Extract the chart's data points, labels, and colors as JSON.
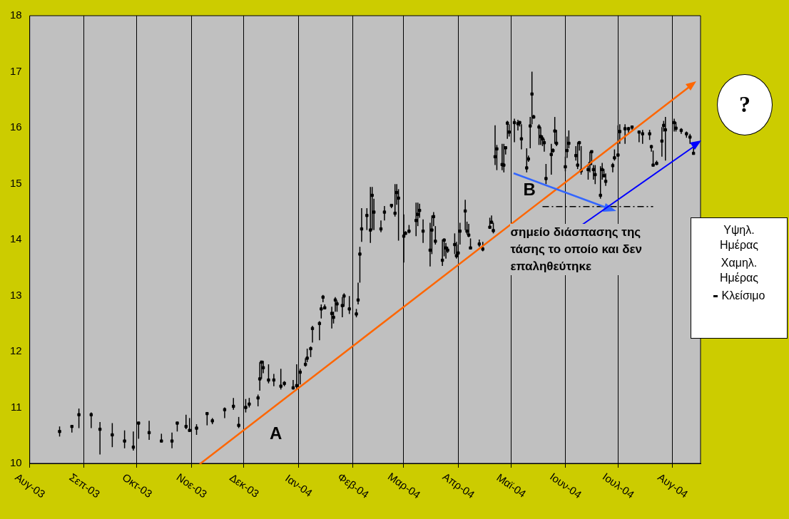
{
  "chart_data": {
    "type": "scatter",
    "legend": "right",
    "grid": "x",
    "xlim": [
      "2003-08-01",
      "2004-08-17"
    ],
    "xticks": [
      {
        "value": "2003-08-01",
        "label": "Αυγ-03"
      },
      {
        "value": "2003-09-01",
        "label": "Σεπ-03"
      },
      {
        "value": "2003-10-01",
        "label": "Οκτ-03"
      },
      {
        "value": "2003-11-01",
        "label": "Νοε-03"
      },
      {
        "value": "2003-12-01",
        "label": "Δεκ-03"
      },
      {
        "value": "2004-01-01",
        "label": "Ιαν-04"
      },
      {
        "value": "2004-02-01",
        "label": "Φεβ-04"
      },
      {
        "value": "2004-03-01",
        "label": "Μαρ-04"
      },
      {
        "value": "2004-04-01",
        "label": "Απρ-04"
      },
      {
        "value": "2004-05-01",
        "label": "Μαϊ-04"
      },
      {
        "value": "2004-06-01",
        "label": "Ιουν-04"
      },
      {
        "value": "2004-07-01",
        "label": "Ιουλ-04"
      },
      {
        "value": "2004-08-01",
        "label": "Αυγ-04"
      }
    ],
    "ylim": [
      10,
      18
    ],
    "yticks": [
      10,
      11,
      12,
      13,
      14,
      15,
      16,
      17,
      18
    ],
    "x": [
      "2003-08-18",
      "2003-08-25",
      "2003-08-29",
      "2003-09-05",
      "2003-09-10",
      "2003-09-17",
      "2003-09-24",
      "2003-09-29",
      "2003-10-02",
      "2003-10-08",
      "2003-10-15",
      "2003-10-21",
      "2003-10-24",
      "2003-10-29",
      "2003-10-31",
      "2003-11-04",
      "2003-11-10",
      "2003-11-13",
      "2003-11-20",
      "2003-11-25",
      "2003-11-28",
      "2003-12-02",
      "2003-12-04",
      "2003-12-09",
      "2003-12-10",
      "2003-12-11",
      "2003-12-12",
      "2003-12-15",
      "2003-12-18",
      "2003-12-22",
      "2003-12-24",
      "2003-12-29",
      "2003-12-31",
      "2004-01-02",
      "2004-01-05",
      "2004-01-06",
      "2004-01-08",
      "2004-01-09",
      "2004-01-13",
      "2004-01-14",
      "2004-01-15",
      "2004-01-16",
      "2004-01-20",
      "2004-01-21",
      "2004-01-22",
      "2004-01-23",
      "2004-01-26",
      "2004-01-27",
      "2004-01-30",
      "2004-02-03",
      "2004-02-04",
      "2004-02-05",
      "2004-02-06",
      "2004-02-09",
      "2004-02-11",
      "2004-02-12",
      "2004-02-13",
      "2004-02-17",
      "2004-02-19",
      "2004-02-23",
      "2004-02-25",
      "2004-02-26",
      "2004-02-27",
      "2004-03-01",
      "2004-03-02",
      "2004-03-04",
      "2004-03-08",
      "2004-03-09",
      "2004-03-10",
      "2004-03-12",
      "2004-03-16",
      "2004-03-17",
      "2004-03-18",
      "2004-03-19",
      "2004-03-23",
      "2004-03-24",
      "2004-03-25",
      "2004-03-26",
      "2004-03-30",
      "2004-03-31",
      "2004-04-01",
      "2004-04-02",
      "2004-04-05",
      "2004-04-06",
      "2004-04-07",
      "2004-04-08",
      "2004-04-13",
      "2004-04-15",
      "2004-04-19",
      "2004-04-20",
      "2004-04-21",
      "2004-04-22",
      "2004-04-23",
      "2004-04-26",
      "2004-04-27",
      "2004-04-28",
      "2004-04-29",
      "2004-04-30",
      "2004-05-03",
      "2004-05-05",
      "2004-05-06",
      "2004-05-07",
      "2004-05-10",
      "2004-05-11",
      "2004-05-12",
      "2004-05-13",
      "2004-05-14",
      "2004-05-17",
      "2004-05-18",
      "2004-05-19",
      "2004-05-20",
      "2004-05-21",
      "2004-05-24",
      "2004-05-25",
      "2004-05-26",
      "2004-05-27",
      "2004-06-01",
      "2004-06-02",
      "2004-06-03",
      "2004-06-07",
      "2004-06-08",
      "2004-06-09",
      "2004-06-10",
      "2004-06-14",
      "2004-06-15",
      "2004-06-16",
      "2004-06-17",
      "2004-06-18",
      "2004-06-21",
      "2004-06-22",
      "2004-06-23",
      "2004-06-24",
      "2004-06-28",
      "2004-06-29",
      "2004-07-01",
      "2004-07-02",
      "2004-07-05",
      "2004-07-07",
      "2004-07-09",
      "2004-07-13",
      "2004-07-15",
      "2004-07-19",
      "2004-07-20",
      "2004-07-21",
      "2004-07-23",
      "2004-07-26",
      "2004-07-27",
      "2004-07-28",
      "2004-08-02",
      "2004-08-03",
      "2004-08-06",
      "2004-08-09",
      "2004-08-11",
      "2004-08-13"
    ],
    "series": [
      {
        "name": "Κλείσιμο",
        "color": "#000000",
        "marker": "square",
        "values": [
          10.57,
          10.66,
          10.87,
          10.87,
          10.61,
          10.51,
          10.4,
          10.29,
          10.72,
          10.55,
          10.4,
          10.4,
          10.72,
          10.66,
          10.59,
          10.63,
          10.89,
          10.76,
          10.96,
          11.02,
          10.68,
          11.0,
          11.06,
          11.17,
          11.51,
          11.81,
          11.71,
          11.49,
          11.49,
          11.38,
          11.43,
          11.35,
          11.39,
          11.63,
          11.77,
          11.88,
          12.05,
          12.41,
          12.5,
          12.76,
          12.97,
          12.78,
          12.68,
          12.61,
          12.92,
          12.85,
          12.82,
          12.99,
          12.76,
          12.67,
          12.92,
          13.74,
          14.19,
          14.43,
          14.17,
          14.79,
          14.49,
          14.19,
          14.49,
          14.61,
          14.47,
          14.84,
          14.74,
          14.06,
          14.11,
          14.15,
          14.34,
          14.45,
          14.52,
          14.15,
          13.81,
          14.17,
          14.41,
          13.97,
          13.63,
          13.99,
          13.85,
          13.81,
          13.91,
          13.71,
          13.76,
          14.15,
          14.51,
          14.15,
          14.08,
          13.85,
          13.92,
          13.83,
          14.22,
          14.31,
          14.16,
          15.48,
          15.62,
          15.34,
          15.33,
          15.64,
          16.08,
          15.92,
          16.09,
          16.07,
          16.09,
          15.8,
          15.28,
          15.44,
          16.03,
          16.6,
          16.19,
          16.01,
          15.84,
          15.8,
          15.73,
          15.09,
          15.52,
          15.59,
          15.94,
          15.72,
          15.3,
          15.59,
          15.72,
          15.5,
          15.33,
          15.73,
          15.23,
          15.25,
          15.36,
          15.57,
          15.25,
          15.16,
          14.79,
          15.25,
          15.14,
          15.04,
          15.32,
          15.46,
          15.51,
          15.93,
          15.98,
          15.98,
          16.01,
          15.92,
          15.89,
          15.89,
          15.66,
          15.33,
          15.36,
          15.76,
          16.04,
          15.96,
          16.09,
          15.99,
          15.95,
          15.89,
          15.83,
          15.54
        ],
        "errors": [
          [
            10.48,
            10.66
          ],
          [
            10.55,
            10.68
          ],
          [
            10.63,
            10.98
          ],
          [
            10.63,
            10.91
          ],
          [
            10.16,
            10.74
          ],
          [
            10.29,
            10.72
          ],
          [
            10.27,
            10.59
          ],
          [
            10.23,
            10.57
          ],
          [
            10.44,
            10.74
          ],
          [
            10.42,
            10.76
          ],
          [
            10.38,
            10.53
          ],
          [
            10.27,
            10.55
          ],
          [
            10.57,
            10.74
          ],
          [
            10.61,
            10.87
          ],
          [
            10.57,
            10.81
          ],
          [
            10.51,
            10.7
          ],
          [
            10.68,
            10.91
          ],
          [
            10.7,
            10.81
          ],
          [
            10.81,
            11.0
          ],
          [
            10.96,
            11.17
          ],
          [
            10.63,
            10.83
          ],
          [
            10.91,
            11.15
          ],
          [
            11.0,
            11.17
          ],
          [
            11.02,
            11.23
          ],
          [
            11.3,
            11.81
          ],
          [
            11.51,
            11.83
          ],
          [
            11.61,
            11.83
          ],
          [
            11.43,
            11.77
          ],
          [
            11.38,
            11.6
          ],
          [
            11.32,
            11.69
          ],
          [
            11.38,
            11.47
          ],
          [
            11.32,
            11.49
          ],
          [
            11.32,
            11.77
          ],
          [
            11.41,
            11.69
          ],
          [
            11.73,
            11.88
          ],
          [
            11.81,
            12.05
          ],
          [
            11.9,
            12.09
          ],
          [
            12.16,
            12.46
          ],
          [
            12.2,
            12.54
          ],
          [
            12.59,
            12.84
          ],
          [
            12.88,
            13.01
          ],
          [
            12.76,
            12.84
          ],
          [
            12.41,
            12.8
          ],
          [
            12.5,
            12.71
          ],
          [
            12.71,
            12.97
          ],
          [
            12.71,
            12.91
          ],
          [
            12.61,
            12.97
          ],
          [
            12.8,
            13.04
          ],
          [
            12.67,
            12.99
          ],
          [
            12.61,
            12.76
          ],
          [
            12.84,
            13.23
          ],
          [
            13.23,
            13.87
          ],
          [
            13.96,
            14.56
          ],
          [
            14.17,
            14.56
          ],
          [
            13.94,
            14.94
          ],
          [
            14.17,
            14.94
          ],
          [
            14.17,
            14.73
          ],
          [
            14.13,
            14.34
          ],
          [
            14.34,
            14.6
          ],
          [
            14.56,
            14.62
          ],
          [
            14.41,
            14.99
          ],
          [
            14.62,
            14.99
          ],
          [
            13.98,
            14.9
          ],
          [
            13.59,
            14.45
          ],
          [
            14.09,
            14.15
          ],
          [
            14.11,
            14.26
          ],
          [
            14.06,
            14.66
          ],
          [
            14.24,
            14.66
          ],
          [
            14.39,
            14.64
          ],
          [
            13.94,
            14.36
          ],
          [
            13.52,
            14.3
          ],
          [
            13.74,
            14.43
          ],
          [
            14.24,
            14.49
          ],
          [
            13.91,
            14.24
          ],
          [
            13.53,
            14.0
          ],
          [
            13.7,
            14.02
          ],
          [
            13.66,
            13.94
          ],
          [
            13.76,
            13.87
          ],
          [
            13.74,
            14.11
          ],
          [
            13.66,
            13.96
          ],
          [
            13.7,
            13.91
          ],
          [
            13.91,
            14.3
          ],
          [
            14.17,
            14.71
          ],
          [
            14.09,
            14.32
          ],
          [
            14.04,
            14.28
          ],
          [
            13.83,
            14.02
          ],
          [
            13.87,
            14.0
          ],
          [
            13.79,
            13.96
          ],
          [
            14.19,
            14.39
          ],
          [
            14.28,
            14.43
          ],
          [
            14.11,
            14.3
          ],
          [
            15.33,
            16.04
          ],
          [
            15.24,
            15.69
          ],
          [
            15.24,
            15.71
          ],
          [
            15.2,
            15.71
          ],
          [
            15.52,
            15.67
          ],
          [
            15.8,
            16.12
          ],
          [
            15.84,
            16.06
          ],
          [
            15.74,
            16.16
          ],
          [
            15.95,
            16.14
          ],
          [
            16.02,
            16.12
          ],
          [
            15.61,
            16.06
          ],
          [
            15.2,
            15.63
          ],
          [
            15.39,
            15.5
          ],
          [
            15.63,
            16.19
          ],
          [
            16.06,
            17.0
          ],
          [
            16.16,
            16.23
          ],
          [
            15.69,
            16.06
          ],
          [
            15.69,
            16.01
          ],
          [
            15.67,
            15.86
          ],
          [
            15.57,
            15.8
          ],
          [
            14.99,
            15.35
          ],
          [
            15.16,
            15.71
          ],
          [
            15.55,
            15.63
          ],
          [
            15.71,
            16.19
          ],
          [
            15.67,
            15.96
          ],
          [
            15.22,
            15.48
          ],
          [
            15.46,
            15.84
          ],
          [
            15.63,
            15.95
          ],
          [
            15.41,
            15.67
          ],
          [
            15.26,
            15.74
          ],
          [
            15.59,
            15.76
          ],
          [
            15.16,
            15.67
          ],
          [
            15.07,
            15.33
          ],
          [
            15.2,
            15.57
          ],
          [
            15.33,
            15.59
          ],
          [
            15.07,
            15.33
          ],
          [
            14.99,
            15.33
          ],
          [
            14.73,
            15.31
          ],
          [
            15.07,
            15.37
          ],
          [
            15.12,
            15.26
          ],
          [
            14.96,
            15.18
          ],
          [
            15.2,
            15.37
          ],
          [
            15.41,
            15.61
          ],
          [
            15.48,
            16.04
          ],
          [
            15.71,
            16.06
          ],
          [
            15.71,
            16.06
          ],
          [
            15.91,
            16.01
          ],
          [
            15.96,
            16.02
          ],
          [
            15.74,
            15.95
          ],
          [
            15.71,
            15.96
          ],
          [
            15.78,
            15.96
          ],
          [
            15.57,
            15.69
          ],
          [
            15.31,
            15.59
          ],
          [
            15.33,
            15.41
          ],
          [
            15.48,
            16.01
          ],
          [
            15.93,
            16.12
          ],
          [
            15.41,
            16.19
          ],
          [
            15.93,
            16.16
          ],
          [
            15.93,
            16.1
          ],
          [
            15.89,
            15.99
          ],
          [
            15.82,
            15.93
          ],
          [
            15.71,
            15.89
          ],
          [
            15.52,
            15.65
          ]
        ]
      },
      {
        "type": "line",
        "color": "#000000",
        "line_style": "dashed",
        "x": [
          "2004-05-19",
          "2004-07-21"
        ],
        "values": [
          14.59,
          14.59
        ]
      }
    ],
    "annotations": [
      "A",
      {
        "text": "B",
        "x": "2004-05-19",
        "y": 14.59
      },
      {
        "text": "σημείο διάσπασης της τάσης το οποίο και δεν επαληθεύτηκε",
        "x": "2004-06-16",
        "y": 14.59
      },
      "?",
      "Υψηλ. Ημέρας",
      "Χαμηλ. Ημέρας"
    ]
  }
}
